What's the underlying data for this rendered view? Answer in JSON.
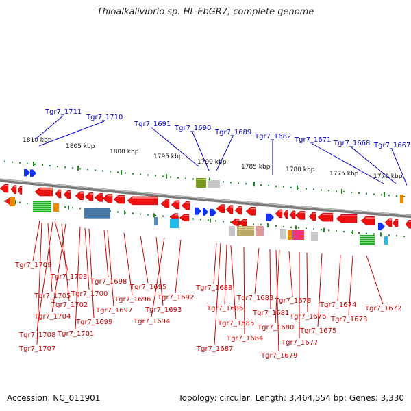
{
  "title": "Thioalkalivibrio sp. HL-EbGR7, complete genome",
  "footer": {
    "accession": "Accession: NC_011901",
    "info": "Topology: circular; Length: 3,464,554 bp; Genes: 3,330"
  },
  "colors": {
    "forward_gene": "#ee1111",
    "reverse_gene": "#1133ee",
    "axis": "#999999",
    "tick": "#228822",
    "top_label": "#0000cc",
    "bottom_label": "#cc0000"
  },
  "scale_labels": [
    "1810 kbp",
    "1805 kbp",
    "1800 kbp",
    "1795 kbp",
    "1790 kbp",
    "1785 kbp",
    "1780 kbp",
    "1775 kbp",
    "1770 kbp"
  ],
  "top_labels": [
    "Tgr7_1711",
    "Tgr7_1710",
    "Tgr7_1691",
    "Tgr7_1690",
    "Tgr7_1689",
    "Tgr7_1682",
    "Tgr7_1671",
    "Tgr7_1668",
    "Tgr7_1667"
  ],
  "bottom_labels": [
    "Tgr7_1709",
    "Tgr7_1703",
    "Tgr7_1705",
    "Tgr7_1702",
    "Tgr7_1704",
    "Tgr7_1708",
    "Tgr7_1707",
    "Tgr7_1701",
    "Tgr7_1699",
    "Tgr7_1700",
    "Tgr7_1698",
    "Tgr7_1697",
    "Tgr7_1696",
    "Tgr7_1695",
    "Tgr7_1694",
    "Tgr7_1693",
    "Tgr7_1692",
    "Tgr7_1688",
    "Tgr7_1686",
    "Tgr7_1687",
    "Tgr7_1685",
    "Tgr7_1684",
    "Tgr7_1683",
    "Tgr7_1681",
    "Tgr7_1680",
    "Tgr7_1679",
    "Tgr7_1678",
    "Tgr7_1677",
    "Tgr7_1676",
    "Tgr7_1675",
    "Tgr7_1674",
    "Tgr7_1673",
    "Tgr7_1672"
  ]
}
